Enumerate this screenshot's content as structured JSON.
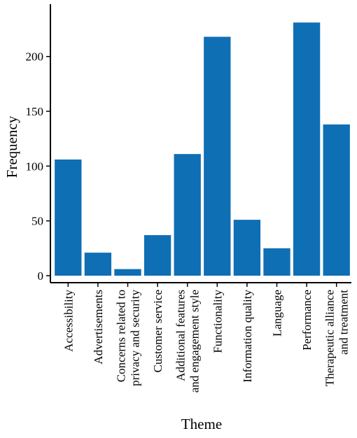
{
  "chart_data": {
    "type": "bar",
    "categories": [
      [
        "Accessibility"
      ],
      [
        "Advertisements"
      ],
      [
        "Concerns related to",
        "privacy and security"
      ],
      [
        "Customer service"
      ],
      [
        "Additional features",
        "and engagement style"
      ],
      [
        "Functionality"
      ],
      [
        "Information quality"
      ],
      [
        "Language"
      ],
      [
        "Performance"
      ],
      [
        "Therapeutic alliance",
        "and treatment"
      ]
    ],
    "values": [
      106,
      21,
      6,
      37,
      111,
      218,
      51,
      25,
      231,
      138
    ],
    "xlabel": "Theme",
    "ylabel": "Frequency",
    "ylim": [
      0,
      240
    ],
    "yticks": [
      0,
      50,
      100,
      150,
      200
    ],
    "grid": false,
    "bar_color": "#0f6fb4"
  }
}
